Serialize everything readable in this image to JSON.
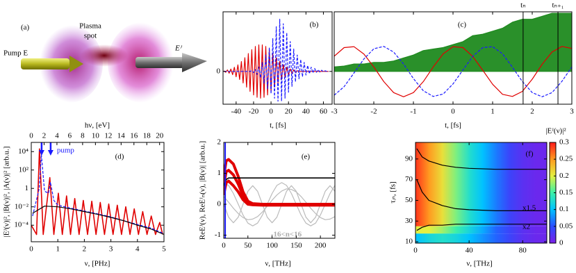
{
  "illustration": {
    "panel": "(a)",
    "spot": [
      "Plasma",
      "spot"
    ],
    "pump": "Pump E",
    "output": "Eᴶ"
  },
  "chart_data": [
    {
      "type": "line",
      "panel": "(b)",
      "xlabel": "t, [fs]",
      "xlim": [
        -55,
        70
      ],
      "xticks": [
        -40,
        -20,
        0,
        20,
        40,
        60
      ],
      "ylim": [
        -1.1,
        2
      ],
      "yticks": [
        0
      ],
      "x": [
        -54,
        -52,
        -50,
        -48,
        -46,
        -44,
        -42,
        -40,
        -38,
        -36,
        -34,
        -32,
        -30,
        -28,
        -26,
        -24,
        -22,
        -20,
        -18,
        -16,
        -14,
        -12,
        -10,
        -8,
        -6,
        -4,
        -2,
        0,
        2,
        4,
        6,
        8,
        10,
        12,
        14,
        16,
        18,
        20,
        22,
        24,
        26,
        28,
        30,
        32,
        34,
        36,
        38,
        40,
        42,
        44,
        46,
        48,
        50,
        52,
        54,
        56,
        58,
        60,
        62,
        64,
        66
      ],
      "series": [
        {
          "color": "#e00000",
          "values": [
            0.02,
            -0.03,
            0.05,
            -0.06,
            0.08,
            -0.11,
            0.14,
            -0.18,
            0.22,
            -0.27,
            0.33,
            -0.39,
            0.46,
            -0.53,
            0.6,
            -0.67,
            0.73,
            -0.79,
            0.84,
            -0.87,
            0.89,
            -0.9,
            0.89,
            -0.87,
            0.84,
            -0.79,
            0.73,
            -0.67,
            0.6,
            -0.53,
            0.46,
            -0.39,
            0.33,
            -0.27,
            0.22,
            -0.18,
            0.14,
            -0.11,
            0.08,
            -0.06,
            0.05,
            -0.03,
            0.02,
            0,
            0,
            0,
            0,
            0,
            0,
            0,
            0,
            0,
            0,
            0,
            0,
            0,
            0,
            0,
            0,
            0,
            0
          ]
        },
        {
          "color": "#1a1aff",
          "dash": "dashed",
          "values": [
            0,
            0,
            0,
            0,
            0,
            0,
            0,
            0,
            0,
            0,
            0,
            0,
            0,
            0,
            0,
            0,
            0.02,
            -0.04,
            0.06,
            -0.1,
            0.15,
            -0.22,
            0.3,
            -0.4,
            0.55,
            -0.6,
            0.8,
            -0.75,
            1.1,
            -0.9,
            1.5,
            -1.0,
            1.75,
            -1.0,
            1.6,
            -0.9,
            1.3,
            -0.7,
            1.0,
            -0.5,
            0.75,
            -0.35,
            0.55,
            -0.25,
            0.4,
            -0.18,
            0.3,
            -0.12,
            0.2,
            -0.08,
            0.14,
            -0.05,
            0.1,
            -0.03,
            0.06,
            -0.02,
            0.04,
            -0.01,
            0.02,
            0,
            0
          ]
        }
      ]
    },
    {
      "type": "line",
      "panel": "(c)",
      "xlabel": "t, [fs]",
      "xlim": [
        -3,
        3
      ],
      "xticks": [
        -3,
        -2,
        -1,
        0,
        1,
        2,
        3
      ],
      "ylim": [
        -1.1,
        2
      ],
      "x": [
        -3,
        -2.75,
        -2.5,
        -2.25,
        -2,
        -1.75,
        -1.5,
        -1.25,
        -1,
        -0.75,
        -0.5,
        -0.25,
        0,
        0.25,
        0.5,
        0.75,
        1,
        1.25,
        1.5,
        1.75,
        2,
        2.25,
        2.5,
        2.75,
        3
      ],
      "series": [
        {
          "color": "#1f8a1f",
          "fill": true,
          "values": [
            0.15,
            0.18,
            0.25,
            0.25,
            0.3,
            0.3,
            0.35,
            0.45,
            0.55,
            0.7,
            0.75,
            0.8,
            0.9,
            1.0,
            1.2,
            1.25,
            1.35,
            1.45,
            1.65,
            1.75,
            1.75,
            1.85,
            1.95,
            1.95,
            1.95
          ]
        },
        {
          "color": "#e00000",
          "values": [
            0.51,
            0.8,
            0.83,
            0.58,
            0.15,
            -0.34,
            -0.71,
            -0.85,
            -0.71,
            -0.34,
            0.15,
            0.59,
            0.83,
            0.8,
            0.5,
            0.04,
            -0.43,
            -0.77,
            -0.84,
            -0.67,
            -0.26,
            0.24,
            0.65,
            0.84,
            0.77
          ]
        },
        {
          "color": "#1a1aff",
          "dash": "dashed",
          "values": [
            -0.8,
            -0.51,
            -0.05,
            0.42,
            0.76,
            0.84,
            0.65,
            0.25,
            -0.24,
            -0.65,
            -0.84,
            -0.76,
            -0.42,
            0.05,
            0.51,
            0.8,
            0.83,
            0.59,
            0.14,
            -0.34,
            -0.71,
            -0.85,
            -0.71,
            -0.33,
            0.15
          ]
        }
      ],
      "vlines": [
        {
          "x": 1.77,
          "label": "tₙ"
        },
        {
          "x": 2.65,
          "label": "tₙ₊₁"
        }
      ]
    },
    {
      "type": "line",
      "panel": "(d)",
      "xlabel": "ν, [PHz]",
      "x2label": "hν, [eV]",
      "ylabel": "|Eᴶ(ν)|², |B(ν)|², |A(ν)|² [arb.u.]",
      "yscale": "log",
      "xlim": [
        0,
        5
      ],
      "xticks": [
        0,
        1,
        2,
        3,
        4,
        5
      ],
      "x2lim": [
        0,
        20.68
      ],
      "x2ticks": [
        0,
        2,
        4,
        6,
        8,
        10,
        12,
        14,
        16,
        18,
        20
      ],
      "ylim": [
        1.6e-06,
        100000
      ],
      "yticks": [
        {
          "value": 10000,
          "label": "10⁴"
        },
        {
          "value": 100,
          "label": "10²"
        },
        1,
        {
          "value": 0.01,
          "label": "10⁻²"
        },
        {
          "value": 0.0001,
          "label": "10⁻⁴"
        }
      ],
      "series": [
        {
          "color": "#e00000",
          "width": 1.6,
          "x": [
            0,
            0.2,
            0.31,
            0.45,
            0.7,
            0.85,
            1.02,
            1.17,
            1.33,
            1.48,
            1.64,
            1.8,
            1.96,
            2.12,
            2.28,
            2.44,
            2.6,
            2.76,
            2.92,
            3.08,
            3.24,
            3.4,
            3.56,
            3.72,
            3.88,
            4.04,
            4.2,
            4.36,
            4.52,
            4.68,
            4.84,
            4.95
          ],
          "values": [
            0.0001,
            1e-05,
            20000,
            1e-05,
            15,
            1e-05,
            0.3,
            1e-05,
            0.15,
            1e-05,
            0.08,
            1e-05,
            0.05,
            1e-05,
            0.04,
            1e-05,
            0.03,
            1e-05,
            0.02,
            1e-05,
            0.015,
            1e-05,
            0.01,
            1e-05,
            0.006,
            1e-05,
            0.003,
            1e-05,
            0.001,
            1e-05,
            0.0002,
            1e-05
          ]
        },
        {
          "color": "#1a1aff",
          "dash": "dashed",
          "x": [
            0.05,
            0.3,
            0.38,
            0.5,
            0.65,
            0.72,
            0.85,
            1,
            1.5,
            2,
            2.5,
            3,
            3.5,
            4,
            4.5,
            5
          ],
          "values": [
            0.001,
            1,
            5000,
            0.5,
            0.3,
            5,
            0.05,
            0.015,
            0.007,
            0.0035,
            0.0017,
            0.0008,
            0.0003,
            0.00012,
            5e-05,
            1.2e-05
          ]
        },
        {
          "color": "#000000",
          "x": [
            0.05,
            0.5,
            1,
            1.5,
            2,
            2.5,
            3,
            3.5,
            4,
            4.5,
            5
          ],
          "values": [
            0.002,
            0.012,
            0.01,
            0.006,
            0.003,
            0.0015,
            0.0007,
            0.0003,
            0.0001,
            4e-05,
            1e-05
          ]
        }
      ],
      "arrows": {
        "x": [
          0.39,
          0.73
        ],
        "color": "#1a1aff",
        "label": "pump"
      }
    },
    {
      "type": "line",
      "panel": "(e)",
      "xlabel": "ν, [THz]",
      "ylabel": "ReEᴶ(ν), ReEᴶₙ(ν), |B(ν)| [arb.u.]",
      "annotation": "-16<n<16",
      "xlim": [
        0,
        230
      ],
      "xticks": [
        0,
        50,
        100,
        150,
        200
      ],
      "ylim": [
        -1.1,
        2
      ],
      "yticks": [
        -1,
        0,
        1,
        2
      ],
      "x": [
        0,
        10,
        20,
        30,
        40,
        50,
        60,
        70,
        80,
        90,
        100,
        110,
        120,
        130,
        140,
        150,
        160,
        170,
        180,
        190,
        200,
        210,
        220,
        230
      ],
      "series": [
        {
          "color": "#bbbbbb",
          "values": [
            0.7,
            0.61,
            0.35,
            0,
            -0.35,
            -0.61,
            -0.7,
            -0.61,
            -0.35,
            0,
            0.35,
            0.61,
            0.7,
            0.61,
            0.35,
            0,
            -0.35,
            -0.61,
            -0.7,
            -0.61,
            -0.35,
            0,
            0.35,
            0.61
          ]
        },
        {
          "color": "#bbbbbb",
          "values": [
            0,
            -0.42,
            -0.6,
            -0.42,
            0,
            0.42,
            0.6,
            0.42,
            0,
            -0.42,
            -0.6,
            -0.42,
            0,
            0.42,
            0.6,
            0.42,
            0,
            -0.42,
            -0.6,
            -0.42,
            0,
            0.42,
            0.6,
            0.42
          ]
        },
        {
          "color": "#bbbbbb",
          "values": [
            0.25,
            0.065,
            -0.13,
            -0.3,
            -0.43,
            -0.5,
            -0.48,
            -0.4,
            -0.25,
            -0.065,
            0.13,
            0.3,
            0.43,
            0.5,
            0.48,
            0.4,
            0.25,
            0.065,
            -0.13,
            -0.3,
            -0.43,
            -0.5,
            -0.48,
            -0.4
          ]
        },
        {
          "color": "#e00000",
          "width": 4,
          "x": [
            0,
            5,
            10,
            20,
            30,
            40,
            50,
            60,
            80,
            230
          ],
          "values": [
            0.9,
            1.4,
            1.45,
            1.3,
            0.9,
            0.4,
            0.1,
            0.02,
            0,
            0
          ]
        },
        {
          "color": "#e00000",
          "width": 4,
          "x": [
            0,
            5,
            10,
            20,
            30,
            40,
            50,
            60,
            80,
            230
          ],
          "values": [
            0.6,
            1.05,
            1.1,
            0.95,
            0.65,
            0.28,
            0.05,
            0,
            -0.01,
            -0.01
          ]
        },
        {
          "color": "#e00000",
          "width": 4,
          "x": [
            0,
            5,
            10,
            20,
            30,
            40,
            50,
            60,
            80,
            230
          ],
          "values": [
            0.3,
            0.7,
            0.75,
            0.6,
            0.4,
            0.15,
            0,
            -0.02,
            -0.03,
            -0.03
          ]
        },
        {
          "color": "#000000",
          "width": 1.6,
          "x": [
            0,
            5,
            10,
            20,
            230
          ],
          "values": [
            0.6,
            0.8,
            0.85,
            0.85,
            0.85
          ]
        }
      ],
      "vlines": [
        {
          "x": 3,
          "color": "#1a1aff"
        }
      ]
    },
    {
      "type": "heatmap",
      "panel": "(f)",
      "xlabel": "ν, [THz]",
      "ylabel": "τᵢₙ, [fs]",
      "zlabel": "|Eᴶ(ν)|²",
      "curve_labels": [
        "x1.5",
        "x2"
      ],
      "xlim": [
        0,
        98
      ],
      "xticks": [
        0,
        40,
        80
      ],
      "ylim": [
        8.7,
        106
      ],
      "yticks": [
        10,
        30,
        50,
        70,
        90
      ],
      "zlim": [
        0,
        0.3
      ],
      "zticks": [
        0,
        0.05,
        0.1,
        0.15,
        0.2,
        0.25,
        0.3
      ],
      "colormap": [
        "#7b1fe8",
        "#2b4dff",
        "#00c2ff",
        "#3cf0a8",
        "#e4f040",
        "#ff9a20",
        "#ff1a1a"
      ],
      "xedges": [
        0,
        10,
        20,
        30,
        40,
        50,
        60,
        70,
        80,
        90,
        98
      ],
      "yedges": [
        8.7,
        18,
        25,
        106
      ],
      "z": [
        [
          0.1,
          0.12,
          0.13,
          0.12,
          0.1,
          0.08,
          0.06,
          0.04,
          0.02,
          0.01
        ],
        [
          0.2,
          0.2,
          0.18,
          0.15,
          0.12,
          0.09,
          0.06,
          0.04,
          0.02,
          0.01
        ],
        [
          0.29,
          0.25,
          0.21,
          0.17,
          0.13,
          0.1,
          0.07,
          0.04,
          0.02,
          0.01
        ]
      ],
      "x": [
        1,
        5,
        10,
        20,
        30,
        40,
        60,
        80,
        98
      ],
      "series": [
        {
          "color": "#000000",
          "values": [
            100,
            92,
            88,
            84,
            82,
            81,
            80,
            80,
            80
          ]
        },
        {
          "color": "#000000",
          "values": [
            70,
            58,
            50,
            45,
            42,
            41,
            40,
            40,
            40
          ]
        },
        {
          "color": "#000000",
          "values": [
            21,
            24,
            26,
            26,
            27,
            27,
            27,
            27,
            27
          ]
        }
      ]
    }
  ]
}
